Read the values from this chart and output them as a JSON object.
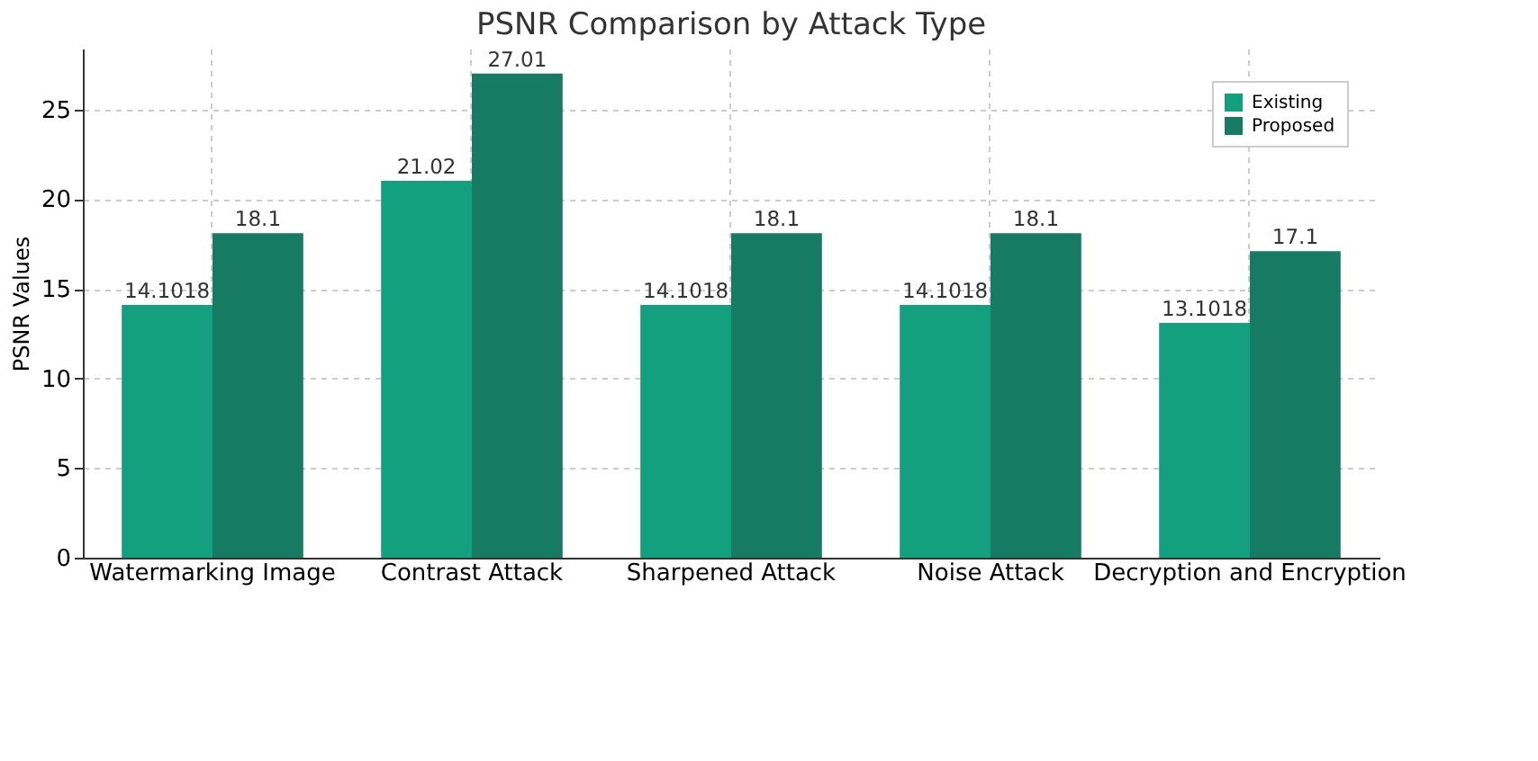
{
  "chart_data": {
    "type": "bar",
    "title": "PSNR Comparison by Attack Type",
    "ylabel": "PSNR Values",
    "categories": [
      "Watermarking Image",
      "Contrast Attack",
      "Sharpened Attack",
      "Noise Attack",
      "Decryption and Encryption"
    ],
    "series": [
      {
        "name": "Existing",
        "color": "#13a07e",
        "values": [
          14.1018,
          21.02,
          14.1018,
          14.1018,
          13.1018
        ]
      },
      {
        "name": "Proposed",
        "color": "#177a63",
        "values": [
          18.1,
          27.01,
          18.1,
          18.1,
          17.1
        ]
      }
    ],
    "ylim": [
      0,
      28.4
    ],
    "yticks": [
      0,
      5,
      10,
      15,
      20,
      25
    ],
    "grid": true,
    "legend": "top right",
    "data_labels": true
  }
}
